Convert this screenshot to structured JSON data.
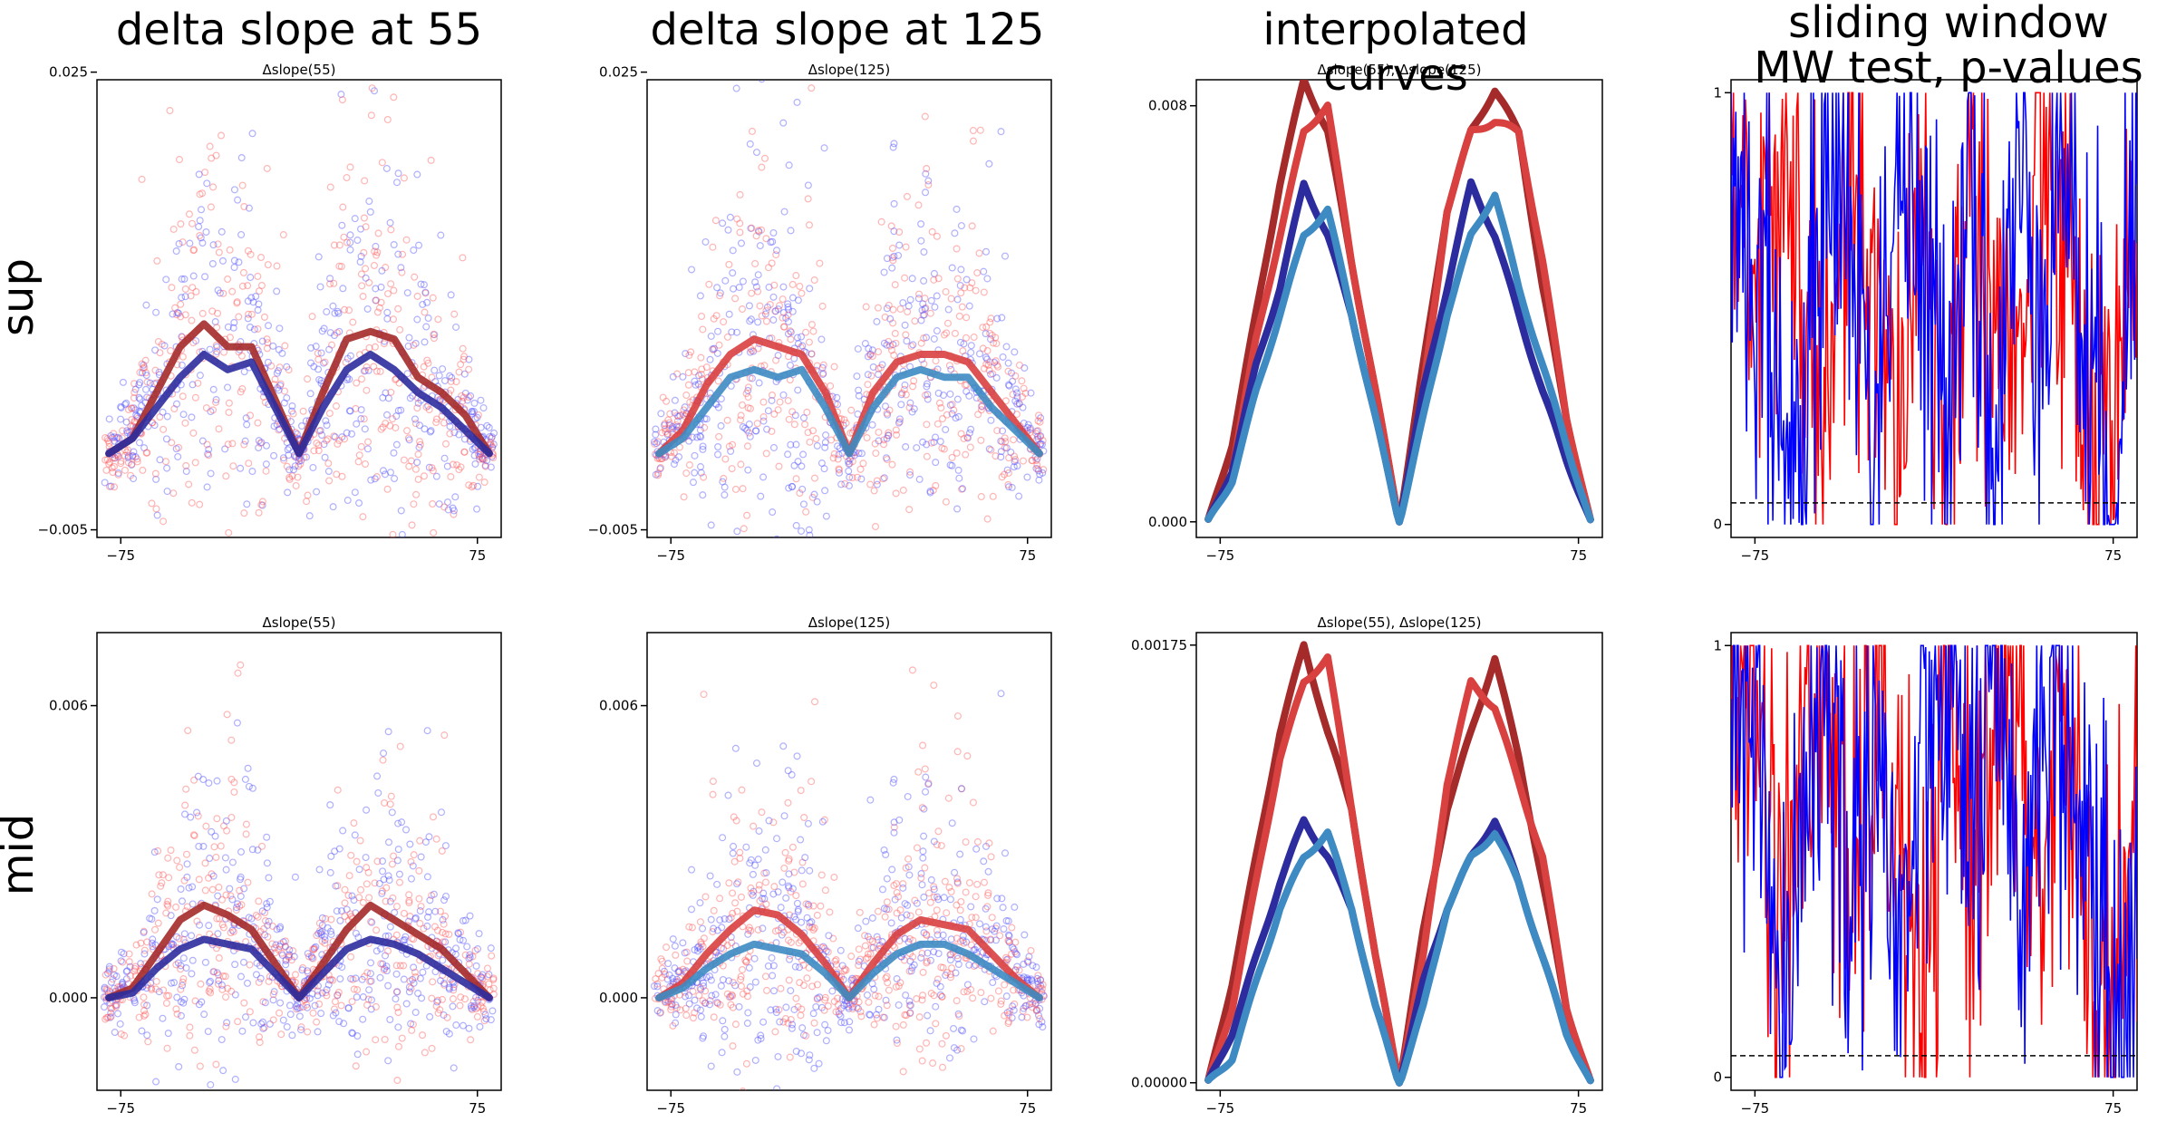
{
  "figure": {
    "column_titles": [
      "delta slope at 55",
      "delta slope at 125",
      "interpolated curves",
      "sliding window\nMW test, p-values"
    ],
    "row_labels": [
      "sup",
      "mid"
    ],
    "colors": {
      "red_points": "#ff5a5a",
      "blue_points": "#5050ff",
      "dark_red_curve": "#a52a2a",
      "red_curve": "#d94040",
      "dark_blue_curve": "#2c2c9e",
      "light_blue_curve": "#3d8bc2",
      "pvalue_red": "#ff0000",
      "pvalue_blue": "#0000ff"
    }
  },
  "chart_data": [
    {
      "id": "sup-col1",
      "type": "scatter",
      "title": "Δslope(55)",
      "xlim": [
        -85,
        85
      ],
      "ylim": [
        -0.0055,
        0.0245
      ],
      "xticks": [
        -75,
        75
      ],
      "xtick_labels": [
        "−75",
        "75"
      ],
      "yticks": [
        -0.005,
        0.025
      ],
      "ytick_labels": [
        "−0.005",
        "0.025"
      ],
      "series": [
        {
          "color": "#a52a2a",
          "x": [
            -80,
            -70,
            -60,
            -50,
            -40,
            -30,
            -20,
            -10,
            0,
            10,
            20,
            30,
            40,
            50,
            60,
            70,
            80
          ],
          "y": [
            0,
            0.001,
            0.004,
            0.007,
            0.0085,
            0.007,
            0.007,
            0.0035,
            0,
            0.004,
            0.0075,
            0.008,
            0.0075,
            0.005,
            0.004,
            0.0025,
            0
          ]
        },
        {
          "color": "#2c2c9e",
          "x": [
            -80,
            -70,
            -60,
            -50,
            -40,
            -30,
            -20,
            -10,
            0,
            10,
            20,
            30,
            40,
            50,
            60,
            70,
            80
          ],
          "y": [
            0,
            0.001,
            0.003,
            0.005,
            0.0065,
            0.0055,
            0.006,
            0.003,
            0,
            0.003,
            0.0055,
            0.0065,
            0.0055,
            0.004,
            0.003,
            0.0015,
            0
          ]
        }
      ]
    },
    {
      "id": "sup-col2",
      "type": "scatter",
      "title": "Δslope(125)",
      "xlim": [
        -85,
        85
      ],
      "ylim": [
        -0.0055,
        0.0245
      ],
      "xticks": [
        -75,
        75
      ],
      "xtick_labels": [
        "−75",
        "75"
      ],
      "yticks": [
        -0.005,
        0.025
      ],
      "ytick_labels": [
        "−0.005",
        "0.025"
      ],
      "series": [
        {
          "color": "#d94040",
          "x": [
            -80,
            -70,
            -60,
            -50,
            -40,
            -30,
            -20,
            -10,
            0,
            10,
            20,
            30,
            40,
            50,
            60,
            70,
            80
          ],
          "y": [
            0,
            0.0015,
            0.0045,
            0.0065,
            0.0075,
            0.007,
            0.0065,
            0.004,
            0,
            0.004,
            0.006,
            0.0065,
            0.0065,
            0.006,
            0.004,
            0.002,
            0
          ]
        },
        {
          "color": "#3d8bc2",
          "x": [
            -80,
            -70,
            -60,
            -50,
            -40,
            -30,
            -20,
            -10,
            0,
            10,
            20,
            30,
            40,
            50,
            60,
            70,
            80
          ],
          "y": [
            0,
            0.001,
            0.003,
            0.005,
            0.0055,
            0.005,
            0.0055,
            0.003,
            0,
            0.003,
            0.005,
            0.0055,
            0.005,
            0.005,
            0.003,
            0.0015,
            0
          ]
        }
      ]
    },
    {
      "id": "sup-col3",
      "type": "line",
      "title": "Δslope(55), Δslope(125)",
      "xlim": [
        -85,
        85
      ],
      "ylim": [
        -0.0003,
        0.0085
      ],
      "xticks": [
        -75,
        75
      ],
      "xtick_labels": [
        "−75",
        "75"
      ],
      "yticks": [
        0,
        0.008
      ],
      "ytick_labels": [
        "0.000",
        "0.008"
      ],
      "series": [
        {
          "color": "#a52a2a",
          "x": [
            -80,
            -70,
            -60,
            -50,
            -40,
            -30,
            -20,
            -10,
            0,
            10,
            20,
            30,
            40,
            50,
            60,
            70,
            80
          ],
          "y": [
            0,
            0.0015,
            0.004,
            0.0065,
            0.0085,
            0.0075,
            0.005,
            0.0025,
            0,
            0.003,
            0.006,
            0.0075,
            0.0083,
            0.0075,
            0.0045,
            0.002,
            0
          ]
        },
        {
          "color": "#d94040",
          "x": [
            -80,
            -70,
            -60,
            -50,
            -40,
            -30,
            -20,
            -10,
            0,
            10,
            20,
            30,
            40,
            50,
            60,
            70,
            80
          ],
          "y": [
            0,
            0.001,
            0.0035,
            0.0055,
            0.0075,
            0.008,
            0.005,
            0.0025,
            0,
            0.0025,
            0.006,
            0.0075,
            0.0077,
            0.0075,
            0.005,
            0.002,
            0
          ]
        },
        {
          "color": "#2c2c9e",
          "x": [
            -80,
            -70,
            -60,
            -50,
            -40,
            -30,
            -20,
            -10,
            0,
            10,
            20,
            30,
            40,
            50,
            60,
            70,
            80
          ],
          "y": [
            0,
            0.001,
            0.003,
            0.0045,
            0.0065,
            0.0055,
            0.004,
            0.002,
            0,
            0.0025,
            0.0045,
            0.0065,
            0.0055,
            0.004,
            0.0025,
            0.0012,
            0
          ]
        },
        {
          "color": "#3d8bc2",
          "x": [
            -80,
            -70,
            -60,
            -50,
            -40,
            -30,
            -20,
            -10,
            0,
            10,
            20,
            30,
            40,
            50,
            60,
            70,
            80
          ],
          "y": [
            0,
            0.0008,
            0.0025,
            0.004,
            0.0055,
            0.006,
            0.004,
            0.002,
            0,
            0.002,
            0.004,
            0.0055,
            0.0063,
            0.0045,
            0.003,
            0.0015,
            0
          ]
        }
      ]
    },
    {
      "id": "sup-col4",
      "type": "line",
      "title": "",
      "xlim": [
        -85,
        85
      ],
      "ylim": [
        -0.03,
        1.03
      ],
      "xticks": [
        -75,
        75
      ],
      "xtick_labels": [
        "−75",
        "75"
      ],
      "yticks": [
        0,
        1
      ],
      "ytick_labels": [
        "0",
        "1"
      ],
      "threshold": 0.05,
      "series": [
        {
          "color": "#ff0000",
          "x": [
            -85,
            -75,
            -65,
            -55,
            -45,
            -35,
            -25,
            -15,
            -5,
            5,
            15,
            25,
            35,
            45,
            55,
            65,
            75,
            85
          ],
          "y": [
            0.95,
            0.5,
            0.85,
            0.6,
            0.1,
            0.9,
            0.4,
            0.2,
            0.8,
            0.05,
            0.9,
            0.5,
            0.3,
            0.85,
            0.6,
            0.2,
            0.05,
            0.7
          ]
        },
        {
          "color": "#0000ff",
          "x": [
            -85,
            -75,
            -65,
            -55,
            -45,
            -35,
            -25,
            -15,
            -5,
            5,
            15,
            25,
            35,
            45,
            55,
            65,
            75,
            85
          ],
          "y": [
            0.9,
            0.6,
            0.3,
            0.05,
            0.95,
            0.7,
            0.2,
            0.9,
            0.5,
            0.3,
            0.95,
            0.1,
            0.8,
            0.6,
            0.9,
            0.3,
            0.02,
            0.85
          ]
        }
      ]
    },
    {
      "id": "mid-col1",
      "type": "scatter",
      "title": "Δslope(55)",
      "xlim": [
        -85,
        85
      ],
      "ylim": [
        -0.0019,
        0.0075
      ],
      "xticks": [
        -75,
        75
      ],
      "xtick_labels": [
        "−75",
        "75"
      ],
      "yticks": [
        0,
        0.006
      ],
      "ytick_labels": [
        "0.000",
        "0.006"
      ],
      "series": [
        {
          "color": "#a52a2a",
          "x": [
            -80,
            -70,
            -60,
            -50,
            -40,
            -30,
            -20,
            -10,
            0,
            10,
            20,
            30,
            40,
            50,
            60,
            70,
            80
          ],
          "y": [
            0,
            0.0002,
            0.0009,
            0.0016,
            0.0019,
            0.0017,
            0.0014,
            0.0007,
            0,
            0.0007,
            0.0014,
            0.0019,
            0.0016,
            0.0013,
            0.001,
            0.0005,
            0
          ]
        },
        {
          "color": "#2c2c9e",
          "x": [
            -80,
            -70,
            -60,
            -50,
            -40,
            -30,
            -20,
            -10,
            0,
            10,
            20,
            30,
            40,
            50,
            60,
            70,
            80
          ],
          "y": [
            0,
            0.0001,
            0.0006,
            0.001,
            0.0012,
            0.0011,
            0.001,
            0.0005,
            0,
            0.0005,
            0.001,
            0.0012,
            0.0011,
            0.0009,
            0.0006,
            0.0003,
            0
          ]
        }
      ]
    },
    {
      "id": "mid-col2",
      "type": "scatter",
      "title": "Δslope(125)",
      "xlim": [
        -85,
        85
      ],
      "ylim": [
        -0.0019,
        0.0075
      ],
      "xticks": [
        -75,
        75
      ],
      "xtick_labels": [
        "−75",
        "75"
      ],
      "yticks": [
        0,
        0.006
      ],
      "ytick_labels": [
        "0.000",
        "0.006"
      ],
      "series": [
        {
          "color": "#d94040",
          "x": [
            -80,
            -70,
            -60,
            -50,
            -40,
            -30,
            -20,
            -10,
            0,
            10,
            20,
            30,
            40,
            50,
            60,
            70,
            80
          ],
          "y": [
            0,
            0.0003,
            0.0009,
            0.0014,
            0.0018,
            0.0017,
            0.0013,
            0.0007,
            0,
            0.0007,
            0.0013,
            0.0016,
            0.0015,
            0.0014,
            0.0009,
            0.0004,
            0
          ]
        },
        {
          "color": "#3d8bc2",
          "x": [
            -80,
            -70,
            -60,
            -50,
            -40,
            -30,
            -20,
            -10,
            0,
            10,
            20,
            30,
            40,
            50,
            60,
            70,
            80
          ],
          "y": [
            0,
            0.0002,
            0.0006,
            0.0009,
            0.0011,
            0.001,
            0.0009,
            0.0005,
            0,
            0.0005,
            0.0009,
            0.0011,
            0.0011,
            0.0009,
            0.0006,
            0.0003,
            0
          ]
        }
      ]
    },
    {
      "id": "mid-col3",
      "type": "line",
      "title": "Δslope(55), Δslope(125)",
      "xlim": [
        -85,
        85
      ],
      "ylim": [
        -3e-05,
        0.0018
      ],
      "xticks": [
        -75,
        75
      ],
      "xtick_labels": [
        "−75",
        "75"
      ],
      "yticks": [
        0,
        0.00175
      ],
      "ytick_labels": [
        "0.00000",
        "0.00175"
      ],
      "series": [
        {
          "color": "#a52a2a",
          "x": [
            -80,
            -70,
            -60,
            -50,
            -40,
            -30,
            -20,
            -10,
            0,
            10,
            20,
            30,
            40,
            50,
            60,
            70,
            80
          ],
          "y": [
            0,
            0.0004,
            0.0009,
            0.0014,
            0.00175,
            0.0014,
            0.0011,
            0.0005,
            0,
            0.0006,
            0.0011,
            0.0014,
            0.0017,
            0.0013,
            0.0008,
            0.0003,
            0
          ]
        },
        {
          "color": "#d94040",
          "x": [
            -80,
            -70,
            -60,
            -50,
            -40,
            -30,
            -20,
            -10,
            0,
            10,
            20,
            30,
            40,
            50,
            60,
            70,
            80
          ],
          "y": [
            0,
            0.0003,
            0.0008,
            0.0013,
            0.0016,
            0.0017,
            0.0011,
            0.0005,
            0,
            0.0005,
            0.0012,
            0.0016,
            0.0015,
            0.0012,
            0.0009,
            0.0003,
            0
          ]
        },
        {
          "color": "#2c2c9e",
          "x": [
            -80,
            -70,
            -60,
            -50,
            -40,
            -30,
            -20,
            -10,
            0,
            10,
            20,
            30,
            40,
            50,
            60,
            70,
            80
          ],
          "y": [
            0,
            0.0002,
            0.0005,
            0.0008,
            0.00105,
            0.0009,
            0.0007,
            0.0003,
            0,
            0.0004,
            0.0007,
            0.0009,
            0.00105,
            0.0008,
            0.0005,
            0.0002,
            0
          ]
        },
        {
          "color": "#3d8bc2",
          "x": [
            -80,
            -70,
            -60,
            -50,
            -40,
            -30,
            -20,
            -10,
            0,
            10,
            20,
            30,
            40,
            50,
            60,
            70,
            80
          ],
          "y": [
            0,
            0.0001,
            0.0004,
            0.0007,
            0.0009,
            0.001,
            0.0007,
            0.0003,
            0,
            0.0003,
            0.0007,
            0.0009,
            0.001,
            0.0008,
            0.0005,
            0.0002,
            0
          ]
        }
      ]
    },
    {
      "id": "mid-col4",
      "type": "line",
      "title": "",
      "xlim": [
        -85,
        85
      ],
      "ylim": [
        -0.03,
        1.03
      ],
      "xticks": [
        -75,
        75
      ],
      "xtick_labels": [
        "−75",
        "75"
      ],
      "yticks": [
        0,
        1
      ],
      "ytick_labels": [
        "0",
        "1"
      ],
      "threshold": 0.05,
      "series": [
        {
          "color": "#ff0000",
          "x": [
            -85,
            -75,
            -65,
            -55,
            -45,
            -35,
            -25,
            -15,
            -5,
            5,
            15,
            25,
            35,
            45,
            55,
            65,
            75,
            85
          ],
          "y": [
            0.9,
            0.95,
            0.4,
            0.7,
            0.95,
            0.3,
            0.85,
            0.6,
            0.05,
            0.9,
            0.5,
            0.95,
            0.8,
            0.4,
            0.9,
            0.3,
            0.02,
            0.6
          ]
        },
        {
          "color": "#0000ff",
          "x": [
            -85,
            -75,
            -65,
            -55,
            -45,
            -35,
            -25,
            -15,
            -5,
            5,
            15,
            25,
            35,
            45,
            55,
            65,
            75,
            85
          ],
          "y": [
            0.95,
            0.85,
            0.05,
            0.6,
            0.95,
            0.4,
            0.9,
            0.2,
            0.7,
            0.95,
            0.6,
            0.9,
            0.3,
            0.95,
            0.8,
            0.5,
            0.01,
            0.3
          ]
        }
      ]
    }
  ]
}
